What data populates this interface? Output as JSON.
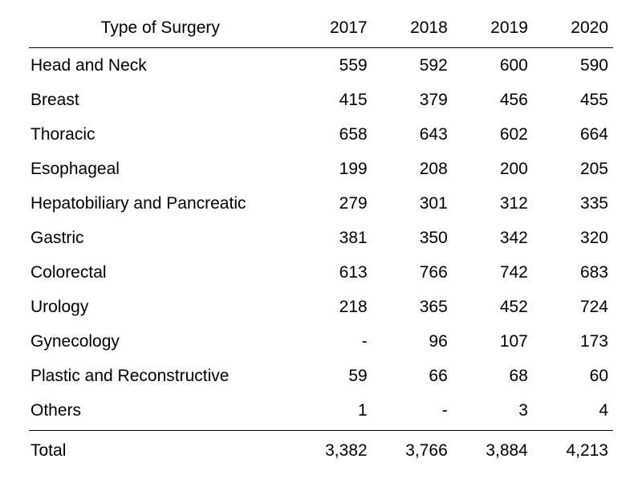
{
  "table": {
    "type": "table",
    "background_color": "#ffffff",
    "text_color": "#000000",
    "border_color": "#000000",
    "font_size_pt": 16,
    "row_label_header": "Type of Surgery",
    "year_columns": [
      "2017",
      "2018",
      "2019",
      "2020"
    ],
    "rows": [
      {
        "label": "Head and Neck",
        "values": [
          "559",
          "592",
          "600",
          "590"
        ]
      },
      {
        "label": "Breast",
        "values": [
          "415",
          "379",
          "456",
          "455"
        ]
      },
      {
        "label": "Thoracic",
        "values": [
          "658",
          "643",
          "602",
          "664"
        ]
      },
      {
        "label": "Esophageal",
        "values": [
          "199",
          "208",
          "200",
          "205"
        ]
      },
      {
        "label": "Hepatobiliary and Pancreatic",
        "values": [
          "279",
          "301",
          "312",
          "335"
        ]
      },
      {
        "label": "Gastric",
        "values": [
          "381",
          "350",
          "342",
          "320"
        ]
      },
      {
        "label": "Colorectal",
        "values": [
          "613",
          "766",
          "742",
          "683"
        ]
      },
      {
        "label": "Urology",
        "values": [
          "218",
          "365",
          "452",
          "724"
        ]
      },
      {
        "label": "Gynecology",
        "values": [
          "-",
          "96",
          "107",
          "173"
        ]
      },
      {
        "label": "Plastic and Reconstructive",
        "values": [
          "59",
          "66",
          "68",
          "60"
        ]
      },
      {
        "label": "Others",
        "values": [
          "1",
          "-",
          "3",
          "4"
        ]
      }
    ],
    "total": {
      "label": "Total",
      "values": [
        "3,382",
        "3,766",
        "3,884",
        "4,213"
      ]
    },
    "column_alignment": [
      "left",
      "right",
      "right",
      "right",
      "right"
    ]
  }
}
